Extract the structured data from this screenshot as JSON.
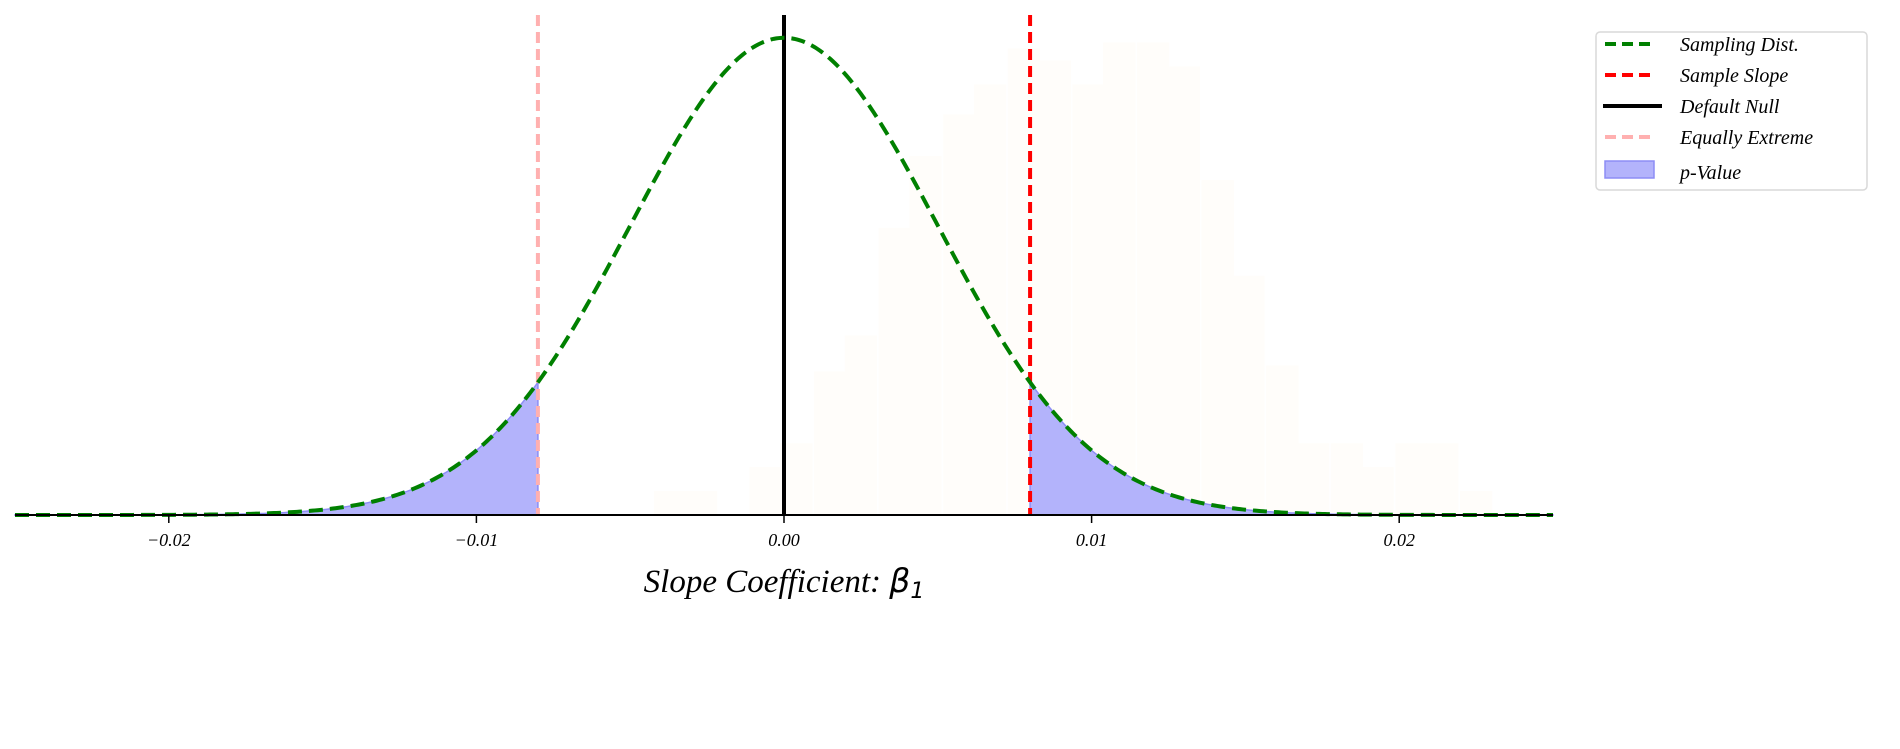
{
  "chart_data": {
    "type": "line",
    "title": "",
    "xlabel": "Slope Coefficient: ",
    "xlabel_symbol": "β",
    "xlabel_subscript": "1",
    "ylabel": "",
    "xlim": [
      -0.025,
      0.025
    ],
    "ylim": [
      0,
      83.6
    ],
    "grid": false,
    "legend_position": "top-right",
    "xticks": [
      -0.02,
      -0.01,
      0.0,
      0.01,
      0.02
    ],
    "xtick_labels": [
      "−0.02",
      "−0.01",
      "0.00",
      "0.01",
      "0.02"
    ],
    "sampling_distribution": {
      "name": "Sampling Dist.",
      "mean": 0.0,
      "sd": 0.005,
      "color": "#008000",
      "style": "dashed"
    },
    "sample_slope": {
      "name": "Sample Slope",
      "x": 0.008,
      "color": "#ff0000",
      "style": "dashed"
    },
    "default_null": {
      "name": "Default Null",
      "x": 0.0,
      "color": "#000000",
      "style": "solid"
    },
    "equally_extreme": {
      "name": "Equally Extreme",
      "x": -0.008,
      "color": "#ffb0b0",
      "style": "dashed"
    },
    "p_value": {
      "name": "p-Value",
      "color": "#b3b3fb",
      "edge": "#8d8df5"
    },
    "histogram": {
      "color": "#fffdfa",
      "bin_width": 0.00105,
      "bin_centers": [
        -0.0037,
        -0.0027,
        -0.0006,
        0.0004,
        0.0015,
        0.0025,
        0.0036,
        0.0046,
        0.0057,
        0.0067,
        0.0078,
        0.0088,
        0.0099,
        0.0109,
        0.012,
        0.013,
        0.0141,
        0.0151,
        0.0162,
        0.0172,
        0.0183,
        0.0193,
        0.0204,
        0.0214,
        0.0225
      ],
      "density": [
        4,
        4,
        8,
        12,
        24,
        30,
        48,
        60,
        67,
        72,
        78,
        76,
        72,
        79,
        79,
        75,
        56,
        40,
        25,
        12,
        12,
        8,
        12,
        12,
        4
      ]
    }
  }
}
